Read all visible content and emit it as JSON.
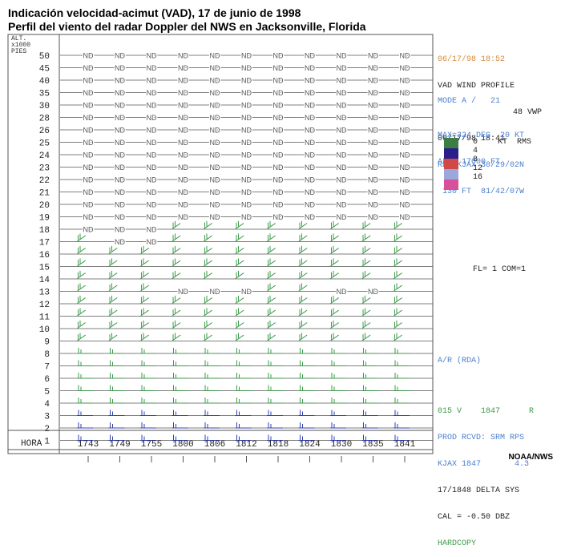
{
  "title_line1": "Indicación velocidad-acimut (VAD), 17 de junio de 1998",
  "title_line2": "Perfil del viento del radar Doppler del NWS en Jacksonville, Florida",
  "credit": "NOAA/NWS",
  "colors": {
    "barb": "#3c9a4a",
    "low_barb": "#3040b0",
    "grid": "#555555",
    "nd": "#555555",
    "orange_text": "#d98a3a",
    "blue_text": "#4a7fd0",
    "green_text": "#3c9a4a"
  },
  "side_panel": {
    "datetime1": "06/17/98 18:52",
    "header1": "VAD WIND PROFILE",
    "header2": "48 VWP",
    "datetime2": "06/17/98 18:41",
    "radar1": "RDA:KJAX 30/29/02N",
    "radar2": " 130 FT  81/42/07W",
    "mode": "MODE A /   21",
    "max1": "MAX=324 DEG  20 KT",
    "max2": "ALT: 17000 FT",
    "fl": "FL= 1 COM=1",
    "ar": "A/R (RDA)",
    "prod1": "015 V    1847      R",
    "prod2": "PROD RCVD: SRM RPS",
    "prod3": "KJAX 1847       4.3",
    "prod4": "17/1848 DELTA SYS",
    "prod5": "CAL = -0.50 DBZ",
    "hardcopy": "HARDCOPY"
  },
  "legend": {
    "header": "KT  RMS",
    "entries": [
      {
        "label": "0",
        "color": "#3c7d45"
      },
      {
        "label": "4",
        "color": "#2a1f8a"
      },
      {
        "label": "8",
        "color": "#d04848"
      },
      {
        "label": "12",
        "color": "#9aa8dc"
      },
      {
        "label": "16",
        "color": "#d8509a"
      }
    ]
  },
  "chart_data": {
    "type": "wind_profile",
    "title": "VAD WIND PROFILE",
    "ylabel_lines": [
      "ALT.",
      "x1000",
      "PIES"
    ],
    "xlabel": "HORA",
    "altitudes": [
      "50",
      "45",
      "40",
      "35",
      "30",
      "28",
      "26",
      "25",
      "24",
      "23",
      "22",
      "21",
      "20",
      "19",
      "18",
      "17",
      "16",
      "15",
      "14",
      "13",
      "12",
      "11",
      "10",
      "9",
      "8",
      "7",
      "6",
      "5",
      "4",
      "3",
      "2",
      "1"
    ],
    "times": [
      "1743",
      "1749",
      "1755",
      "1800",
      "1806",
      "1812",
      "1818",
      "1824",
      "1830",
      "1835",
      "1841"
    ],
    "nd_label": "ND",
    "rows": {
      "50": "ND,ND,ND,ND,ND,ND,ND,ND,ND,ND,ND",
      "45": "ND,ND,ND,ND,ND,ND,ND,ND,ND,ND,ND",
      "40": "ND,ND,ND,ND,ND,ND,ND,ND,ND,ND,ND",
      "35": "ND,ND,ND,ND,ND,ND,ND,ND,ND,ND,ND",
      "30": "ND,ND,ND,ND,ND,ND,ND,ND,ND,ND,ND",
      "28": "ND,ND,ND,ND,ND,ND,ND,ND,ND,ND,ND",
      "26": "ND,ND,ND,ND,ND,ND,ND,ND,ND,ND,ND",
      "25": "ND,ND,ND,ND,ND,ND,ND,ND,ND,ND,ND",
      "24": "ND,ND,ND,ND,ND,ND,ND,ND,ND,ND,ND",
      "23": "ND,ND,ND,ND,ND,ND,ND,ND,ND,ND,ND",
      "22": "ND,ND,ND,ND,ND,ND,ND,ND,ND,ND,ND",
      "21": "ND,ND,ND,ND,ND,ND,ND,ND,ND,ND,ND",
      "20": "ND,ND,ND,ND,ND,ND,ND,ND,ND,ND,ND",
      "19": "ND,ND,ND,ND,ND,ND,ND,ND,ND,ND,ND",
      "18": "ND,ND,ND,B,B,B,B,B,B,B,B",
      "17": "B,ND,ND,B,B,B,B,B,B,B,B",
      "16": "B,B,B,B,B,B,B,B,B,B,B",
      "15": "B,B,B,B,B,B,B,B,B,B,B",
      "14": "B,B,B,B,B,B,B,B,B,B,B",
      "13": "B,B,B,ND,ND,ND,B,B,ND,ND,B",
      "12": "B,B,B,B,B,B,B,B,B,B,B",
      "11": "B,B,B,B,B,B,B,B,B,B,B",
      "10": "B,B,B,B,B,B,B,B,B,B,B",
      "9": "B,B,B,B,B,B,B,B,B,B,B",
      "8": "B,B,B,B,B,B,B,B,B,B,B",
      "7": "B,B,B,B,B,B,B,B,B,B,B",
      "6": "B,B,B,B,B,B,B,B,B,B,B",
      "5": "B,B,B,B,B,B,B,B,B,B,B",
      "4": "B,B,B,B,B,B,B,B,B,B,B",
      "3": "B,B,B,B,B,B,B,B,B,B,B",
      "2": "B,B,B,B,B,B,B,B,B,B,B",
      "1": "B,B,B,B,B,B,B,B,B,B,B"
    }
  }
}
